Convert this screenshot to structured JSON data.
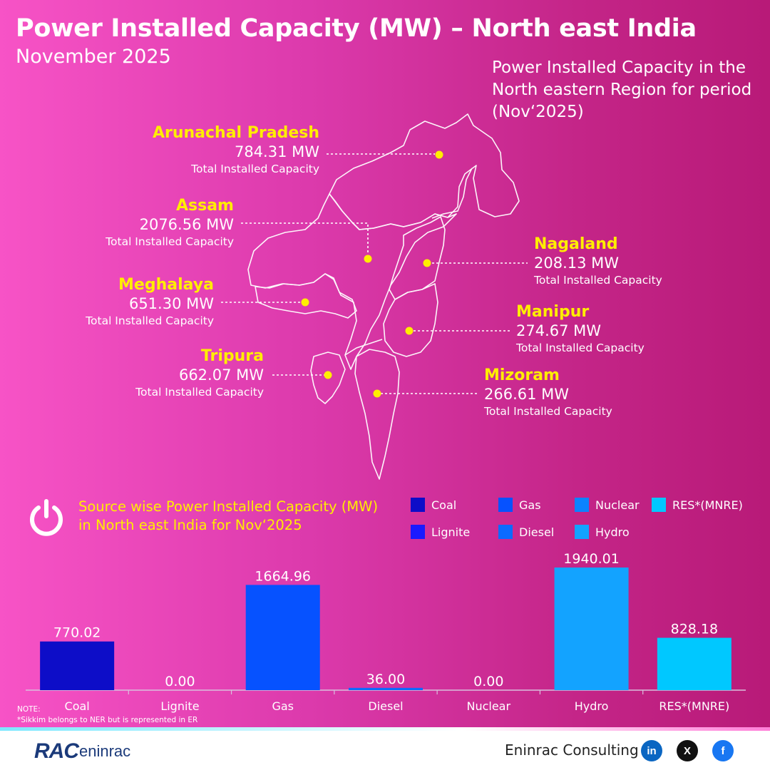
{
  "header": {
    "title": "Power Installed Capacity (MW) – North east India",
    "subtitle": "November 2025",
    "region_note": "Power Installed Capacity in the North eastern Region for period (Nov‘2025)"
  },
  "states": [
    {
      "name": "Arunachal Pradesh",
      "value": "784.31 MW",
      "caption": "Total Installed Capacity"
    },
    {
      "name": "Assam",
      "value": "2076.56 MW",
      "caption": "Total Installed Capacity"
    },
    {
      "name": "Meghalaya",
      "value": "651.30 MW",
      "caption": "Total Installed Capacity"
    },
    {
      "name": "Tripura",
      "value": "662.07 MW",
      "caption": "Total Installed Capacity"
    },
    {
      "name": "Nagaland",
      "value": "208.13 MW",
      "caption": "Total Installed Capacity"
    },
    {
      "name": "Manipur",
      "value": "274.67 MW",
      "caption": "Total Installed Capacity"
    },
    {
      "name": "Mizoram",
      "value": "266.61 MW",
      "caption": "Total Installed Capacity"
    }
  ],
  "source_section": {
    "title": "Source wise Power Installed Capacity (MW) in North east India for Nov‘2025",
    "icon": "power-icon"
  },
  "legend": [
    {
      "label": "Coal",
      "color": "#0d0dc8"
    },
    {
      "label": "Gas",
      "color": "#0652ff"
    },
    {
      "label": "Nuclear",
      "color": "#0b83ff"
    },
    {
      "label": "RES*(MNRE)",
      "color": "#00c8ff"
    },
    {
      "label": "Lignite",
      "color": "#1a1aff"
    },
    {
      "label": "Diesel",
      "color": "#0b6bff"
    },
    {
      "label": "Hydro",
      "color": "#13a3ff"
    }
  ],
  "chart_data": {
    "type": "bar",
    "categories": [
      "Coal",
      "Lignite",
      "Gas",
      "Diesel",
      "Nuclear",
      "Hydro",
      "RES*(MNRE)"
    ],
    "values": [
      770.02,
      0.0,
      1664.96,
      36.0,
      0.0,
      1940.01,
      828.18
    ],
    "value_labels": [
      "770.02",
      "0.00",
      "1664.96",
      "36.00",
      "0.00",
      "1940.01",
      "828.18"
    ],
    "colors": [
      "#0d0dc8",
      "#1a1aff",
      "#0652ff",
      "#0b6bff",
      "#0b83ff",
      "#13a3ff",
      "#00c8ff"
    ],
    "ylim": [
      0,
      1940.01
    ],
    "grid": false
  },
  "notes": {
    "label": "NOTE:",
    "text": "*Sikkim belongs to NER but is represented in ER"
  },
  "footer": {
    "logo_main": "RAC",
    "logo_text": "eninrac",
    "company": "Eninrac Consulting",
    "social": [
      {
        "icon": "linkedin-icon",
        "glyph": "in",
        "color": "#0a66c2"
      },
      {
        "icon": "x-icon",
        "glyph": "X",
        "color": "#111111"
      },
      {
        "icon": "facebook-icon",
        "glyph": "f",
        "color": "#1877f2"
      }
    ]
  }
}
